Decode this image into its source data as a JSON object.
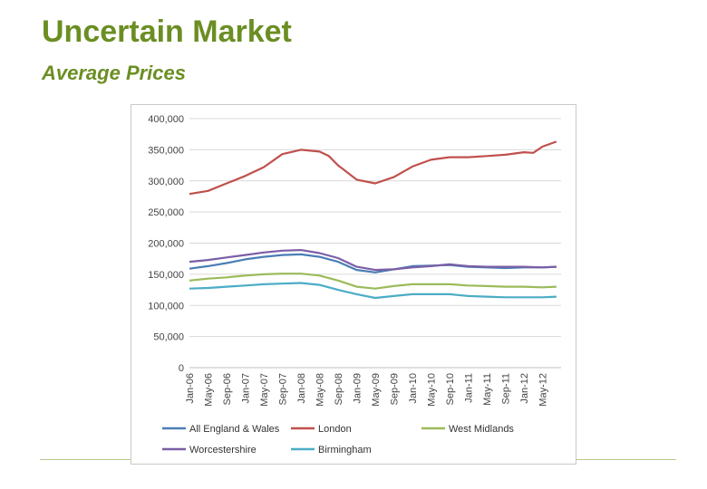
{
  "page": {
    "title": "Uncertain Market",
    "subtitle": "Average Prices"
  },
  "chart_data": {
    "type": "line",
    "title": "",
    "xlabel": "",
    "ylabel": "",
    "ylim": [
      0,
      400000
    ],
    "yticks": [
      0,
      50000,
      100000,
      150000,
      200000,
      250000,
      300000,
      350000,
      400000
    ],
    "ytick_labels": [
      "0",
      "50,000",
      "100,000",
      "150,000",
      "200,000",
      "250,000",
      "300,000",
      "350,000",
      "400,000"
    ],
    "xtick_labels": [
      "Jan-06",
      "May-06",
      "Sep-06",
      "Jan-07",
      "May-07",
      "Sep-07",
      "Jan-08",
      "May-08",
      "Sep-08",
      "Jan-09",
      "May-09",
      "Sep-09",
      "Jan-10",
      "May-10",
      "Sep-10",
      "Jan-11",
      "May-11",
      "Sep-11",
      "Jan-12",
      "May-12"
    ],
    "grid": "horizontal",
    "legend_position": "bottom",
    "series": [
      {
        "name": "All England & Wales",
        "color": "#4a7eb5",
        "points": [
          [
            0,
            159000
          ],
          [
            4,
            163000
          ],
          [
            8,
            168000
          ],
          [
            12,
            174000
          ],
          [
            16,
            178000
          ],
          [
            20,
            181000
          ],
          [
            24,
            182000
          ],
          [
            28,
            178000
          ],
          [
            32,
            170000
          ],
          [
            36,
            157000
          ],
          [
            40,
            153000
          ],
          [
            44,
            158000
          ],
          [
            48,
            163000
          ],
          [
            52,
            164000
          ],
          [
            56,
            165000
          ],
          [
            60,
            162000
          ],
          [
            64,
            161000
          ],
          [
            68,
            160000
          ],
          [
            72,
            161000
          ],
          [
            76,
            161000
          ],
          [
            79,
            162000
          ]
        ]
      },
      {
        "name": "London",
        "color": "#c0504d",
        "points": [
          [
            0,
            279000
          ],
          [
            4,
            284000
          ],
          [
            8,
            296000
          ],
          [
            12,
            308000
          ],
          [
            16,
            322000
          ],
          [
            20,
            343000
          ],
          [
            24,
            350000
          ],
          [
            28,
            347000
          ],
          [
            30,
            340000
          ],
          [
            32,
            325000
          ],
          [
            36,
            302000
          ],
          [
            40,
            296000
          ],
          [
            44,
            306000
          ],
          [
            48,
            323000
          ],
          [
            52,
            334000
          ],
          [
            56,
            338000
          ],
          [
            60,
            338000
          ],
          [
            64,
            340000
          ],
          [
            68,
            342000
          ],
          [
            72,
            346000
          ],
          [
            74,
            345000
          ],
          [
            76,
            355000
          ],
          [
            79,
            363000
          ]
        ]
      },
      {
        "name": "West Midlands",
        "color": "#9bbb59",
        "points": [
          [
            0,
            140000
          ],
          [
            4,
            143000
          ],
          [
            8,
            145000
          ],
          [
            12,
            148000
          ],
          [
            16,
            150000
          ],
          [
            20,
            151000
          ],
          [
            24,
            151000
          ],
          [
            28,
            148000
          ],
          [
            32,
            140000
          ],
          [
            36,
            130000
          ],
          [
            40,
            127000
          ],
          [
            44,
            131000
          ],
          [
            48,
            134000
          ],
          [
            52,
            134000
          ],
          [
            56,
            134000
          ],
          [
            60,
            132000
          ],
          [
            64,
            131000
          ],
          [
            68,
            130000
          ],
          [
            72,
            130000
          ],
          [
            76,
            129000
          ],
          [
            79,
            130000
          ]
        ]
      },
      {
        "name": "Worcestershire",
        "color": "#7b5ea7",
        "points": [
          [
            0,
            170000
          ],
          [
            4,
            173000
          ],
          [
            8,
            177000
          ],
          [
            12,
            181000
          ],
          [
            16,
            185000
          ],
          [
            20,
            188000
          ],
          [
            24,
            189000
          ],
          [
            28,
            184000
          ],
          [
            32,
            176000
          ],
          [
            36,
            162000
          ],
          [
            40,
            157000
          ],
          [
            44,
            158000
          ],
          [
            48,
            161000
          ],
          [
            52,
            163000
          ],
          [
            56,
            166000
          ],
          [
            60,
            163000
          ],
          [
            64,
            162000
          ],
          [
            68,
            162000
          ],
          [
            72,
            162000
          ],
          [
            76,
            161000
          ],
          [
            79,
            162000
          ]
        ]
      },
      {
        "name": "Birmingham",
        "color": "#4bacc6",
        "points": [
          [
            0,
            127000
          ],
          [
            4,
            128000
          ],
          [
            8,
            130000
          ],
          [
            12,
            132000
          ],
          [
            16,
            134000
          ],
          [
            20,
            135000
          ],
          [
            24,
            136000
          ],
          [
            28,
            133000
          ],
          [
            32,
            125000
          ],
          [
            36,
            118000
          ],
          [
            40,
            112000
          ],
          [
            44,
            115000
          ],
          [
            48,
            118000
          ],
          [
            52,
            118000
          ],
          [
            56,
            118000
          ],
          [
            60,
            115000
          ],
          [
            64,
            114000
          ],
          [
            68,
            113000
          ],
          [
            72,
            113000
          ],
          [
            76,
            113000
          ],
          [
            79,
            114000
          ]
        ]
      }
    ]
  }
}
